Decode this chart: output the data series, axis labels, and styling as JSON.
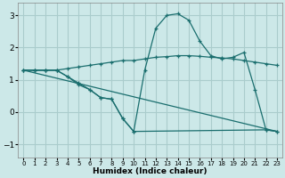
{
  "xlabel": "Humidex (Indice chaleur)",
  "background_color": "#cce8e8",
  "grid_color": "#aacccc",
  "line_color": "#1a6e6e",
  "xlim": [
    -0.5,
    23.5
  ],
  "ylim": [
    -1.4,
    3.4
  ],
  "xticks": [
    0,
    1,
    2,
    3,
    4,
    5,
    6,
    7,
    8,
    9,
    10,
    11,
    12,
    13,
    14,
    15,
    16,
    17,
    18,
    19,
    20,
    21,
    22,
    23
  ],
  "yticks": [
    -1,
    0,
    1,
    2,
    3
  ],
  "line1_x": [
    0,
    23
  ],
  "line1_y": [
    1.3,
    -0.6
  ],
  "line2_x": [
    0,
    1,
    2,
    3,
    4,
    5,
    6,
    7,
    8,
    9,
    10,
    11,
    12,
    13,
    14,
    15,
    16,
    17,
    18,
    19,
    20,
    21,
    22,
    23
  ],
  "line2_y": [
    1.3,
    1.3,
    1.3,
    1.3,
    1.1,
    0.85,
    0.7,
    0.45,
    0.4,
    -0.2,
    -0.6,
    1.3,
    2.6,
    3.0,
    3.05,
    2.85,
    2.2,
    1.75,
    1.65,
    1.7,
    1.85,
    0.7,
    -0.55,
    -0.6
  ],
  "line3_x": [
    0,
    1,
    2,
    3,
    4,
    5,
    6,
    7,
    8,
    9,
    10,
    11,
    12,
    13,
    14,
    15,
    16,
    17,
    18,
    19,
    20,
    21,
    22,
    23
  ],
  "line3_y": [
    1.3,
    1.3,
    1.3,
    1.3,
    1.35,
    1.4,
    1.45,
    1.5,
    1.55,
    1.6,
    1.6,
    1.65,
    1.7,
    1.72,
    1.75,
    1.75,
    1.73,
    1.7,
    1.68,
    1.65,
    1.6,
    1.55,
    1.5,
    1.45
  ],
  "line4_x": [
    0,
    1,
    2,
    3,
    4,
    5,
    6,
    7,
    8,
    9,
    10,
    22,
    23
  ],
  "line4_y": [
    1.3,
    1.3,
    1.3,
    1.3,
    1.1,
    0.9,
    0.7,
    0.45,
    0.4,
    -0.2,
    -0.6,
    -0.55,
    -0.6
  ]
}
